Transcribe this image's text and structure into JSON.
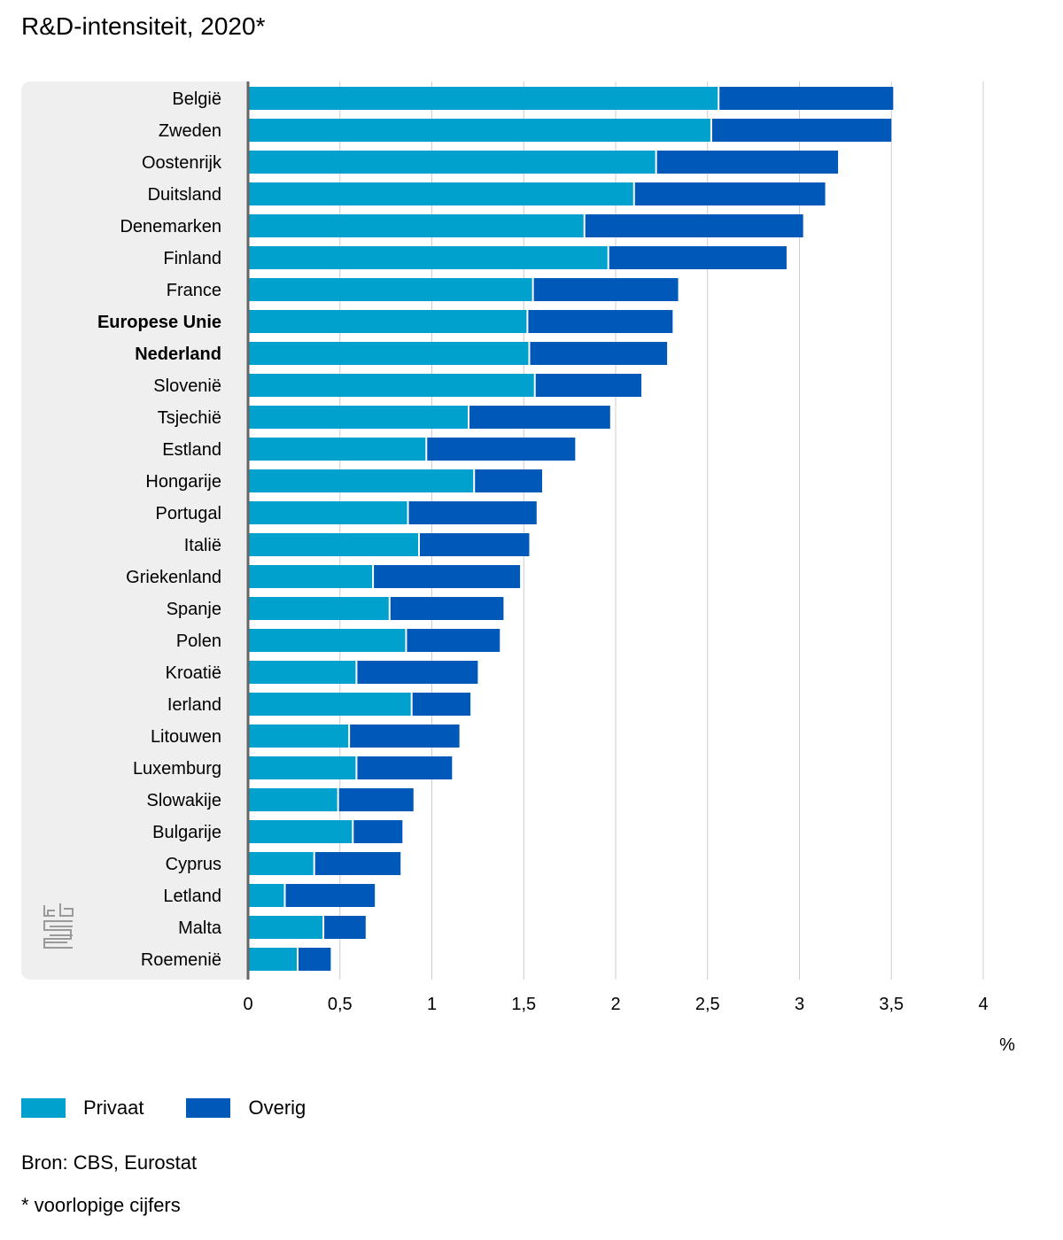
{
  "title": "R&D-intensiteit, 2020*",
  "source": "Bron: CBS, Eurostat",
  "footnote": "* voorlopige cijfers",
  "colors": {
    "privaat": "#00A1CD",
    "overig": "#0058B8",
    "panel": "#EFEFEF",
    "grid": "#CCCCCC",
    "axis": "#666666"
  },
  "chart_data": {
    "type": "bar",
    "orientation": "horizontal",
    "stacked": true,
    "unit_label": "%",
    "xlim": [
      0,
      4
    ],
    "xticks": [
      "0",
      "0,5",
      "1",
      "1,5",
      "2",
      "2,5",
      "3",
      "3,5",
      "4"
    ],
    "grid": true,
    "legend_position": "bottom-left",
    "categories": [
      "België",
      "Zweden",
      "Oostenrijk",
      "Duitsland",
      "Denemarken",
      "Finland",
      "France",
      "Europese Unie",
      "Nederland",
      "Slovenië",
      "Tsjechië",
      "Estland",
      "Hongarije",
      "Portugal",
      "Italië",
      "Griekenland",
      "Spanje",
      "Polen",
      "Kroatië",
      "Ierland",
      "Litouwen",
      "Luxemburg",
      "Slowakije",
      "Bulgarije",
      "Cyprus",
      "Letland",
      "Malta",
      "Roemenië"
    ],
    "bold_categories": [
      "Europese Unie",
      "Nederland"
    ],
    "series": [
      {
        "name": "Privaat",
        "color": "#00A1CD",
        "values": [
          2.56,
          2.52,
          2.22,
          2.1,
          1.83,
          1.96,
          1.55,
          1.52,
          1.53,
          1.56,
          1.2,
          0.97,
          1.23,
          0.87,
          0.93,
          0.68,
          0.77,
          0.86,
          0.59,
          0.89,
          0.55,
          0.59,
          0.49,
          0.57,
          0.36,
          0.2,
          0.41,
          0.27
        ]
      },
      {
        "name": "Overig",
        "color": "#0058B8",
        "values": [
          0.95,
          0.98,
          0.99,
          1.04,
          1.19,
          0.97,
          0.79,
          0.79,
          0.75,
          0.58,
          0.77,
          0.81,
          0.37,
          0.7,
          0.6,
          0.8,
          0.62,
          0.51,
          0.66,
          0.32,
          0.6,
          0.52,
          0.41,
          0.27,
          0.47,
          0.49,
          0.23,
          0.18
        ]
      }
    ]
  }
}
